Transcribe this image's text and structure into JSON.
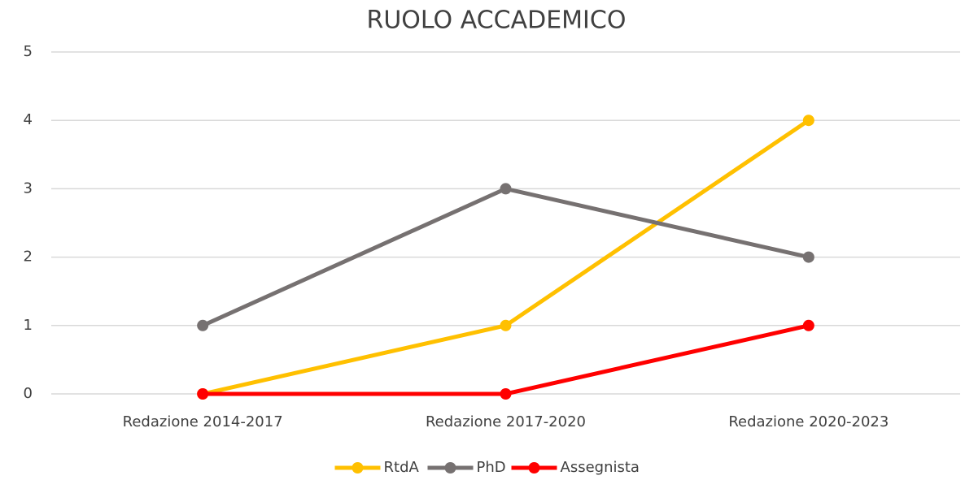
{
  "chart_data": {
    "type": "line",
    "title": "RUOLO ACCADEMICO",
    "categories": [
      "Redazione 2014-2017",
      "Redazione 2017-2020",
      "Redazione 2020-2023"
    ],
    "series": [
      {
        "name": "RtdA",
        "color": "#ffc000",
        "values": [
          0,
          1,
          4
        ]
      },
      {
        "name": "PhD",
        "color": "#767171",
        "values": [
          1,
          3,
          2
        ]
      },
      {
        "name": "Assegnista",
        "color": "#ff0000",
        "values": [
          0,
          0,
          1
        ]
      }
    ],
    "ylim": [
      0,
      5
    ],
    "yticks": [
      0,
      1,
      2,
      3,
      4,
      5
    ],
    "grid": true,
    "legend": "bottom"
  }
}
